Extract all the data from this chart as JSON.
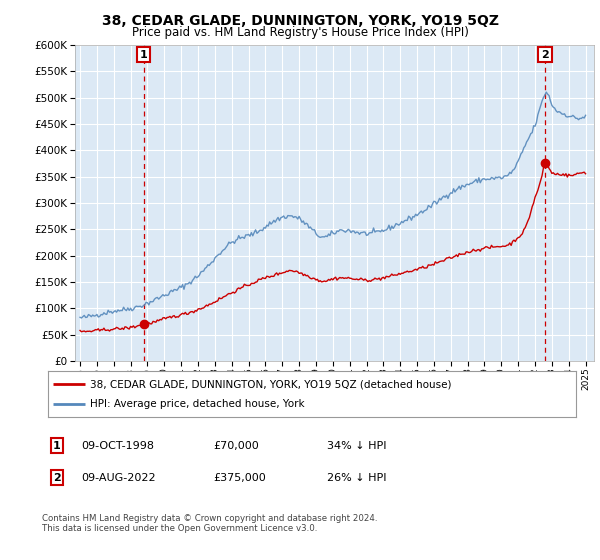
{
  "title": "38, CEDAR GLADE, DUNNINGTON, YORK, YO19 5QZ",
  "subtitle": "Price paid vs. HM Land Registry's House Price Index (HPI)",
  "legend_line1": "38, CEDAR GLADE, DUNNINGTON, YORK, YO19 5QZ (detached house)",
  "legend_line2": "HPI: Average price, detached house, York",
  "annotation1_date": "09-OCT-1998",
  "annotation1_price": "£70,000",
  "annotation1_hpi": "34% ↓ HPI",
  "annotation2_date": "09-AUG-2022",
  "annotation2_price": "£375,000",
  "annotation2_hpi": "26% ↓ HPI",
  "footnote": "Contains HM Land Registry data © Crown copyright and database right 2024.\nThis data is licensed under the Open Government Licence v3.0.",
  "sale1_year": 1998.77,
  "sale1_price": 70000,
  "sale2_year": 2022.6,
  "sale2_price": 375000,
  "red_color": "#cc0000",
  "blue_color": "#5588bb",
  "plot_bg_color": "#dce9f5",
  "dashed_color": "#cc0000",
  "label_box_color": "#cc0000",
  "ylim_max": 600000,
  "background_color": "#ffffff",
  "grid_color": "#ffffff",
  "yticks": [
    0,
    50000,
    100000,
    150000,
    200000,
    250000,
    300000,
    350000,
    400000,
    450000,
    500000,
    550000,
    600000
  ]
}
